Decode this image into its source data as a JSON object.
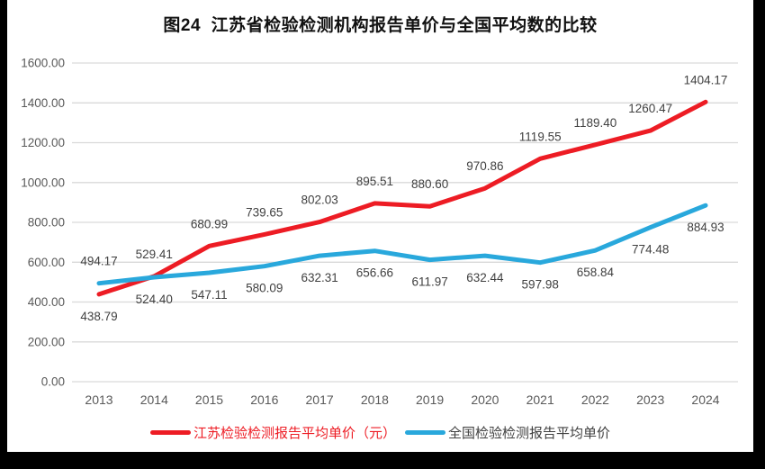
{
  "title": "图24  江苏省检验检测机构报告单价与全国平均数的比较",
  "colors": {
    "background": "#ffffff",
    "frame": "#000000",
    "gridline": "#d9d9d9",
    "axis_text": "#595959",
    "data_label": "#404040",
    "title_text": "#111111",
    "jiangsu_red": "#ed1c24",
    "national_blue": "#29a8dc",
    "legend_label_jiangsu": "#ed1c24",
    "legend_label_national": "#404040"
  },
  "chart_data": {
    "type": "line",
    "title": "图24  江苏省检验检测机构报告单价与全国平均数的比较",
    "x_categories": [
      "2013",
      "2014",
      "2015",
      "2016",
      "2017",
      "2018",
      "2019",
      "2020",
      "2021",
      "2022",
      "2023",
      "2024"
    ],
    "series": [
      {
        "name": "江苏检验检测报告平均单价（元）",
        "data_name": "jiangsu-series",
        "color": "#ed1c24",
        "values": [
          438.79,
          529.41,
          680.99,
          739.65,
          802.03,
          895.51,
          880.6,
          970.86,
          1119.55,
          1189.4,
          1260.47,
          1404.17
        ],
        "label_side": "above",
        "label_side_exceptions": {
          "0": "below"
        }
      },
      {
        "name": "全国检验检测报告平均单价",
        "data_name": "national-series",
        "color": "#29a8dc",
        "values": [
          494.17,
          524.4,
          547.11,
          580.09,
          632.31,
          656.66,
          611.97,
          632.44,
          597.98,
          658.84,
          774.48,
          884.93
        ],
        "label_side": "below",
        "label_side_exceptions": {
          "0": "above"
        }
      }
    ],
    "ylim": [
      0,
      1600
    ],
    "ytick_step": 200,
    "ytick_labels": [
      "0.00",
      "200.00",
      "400.00",
      "600.00",
      "800.00",
      "1000.00",
      "1200.00",
      "1400.00",
      "1600.00"
    ],
    "grid": true,
    "legend_position": "bottom",
    "data_label_decimals": 2
  }
}
